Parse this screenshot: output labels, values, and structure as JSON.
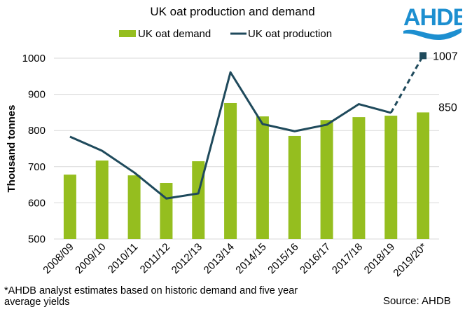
{
  "logo": {
    "text": "AHDB",
    "color": "#1d8fd0"
  },
  "footnote": "*AHDB analyst estimates based on historic demand and five year average yields",
  "source": "Source: AHDB",
  "colors": {
    "demand": "#95be1f",
    "production": "#1f4a5c",
    "grid": "#d9d9d9"
  },
  "chart_data": {
    "type": "bar",
    "title": "UK oat production and demand",
    "xlabel": "",
    "ylabel": "Thousand tonnes",
    "ylim": [
      500,
      1000
    ],
    "yticks": [
      500,
      600,
      700,
      800,
      900,
      1000
    ],
    "grid": true,
    "legend_position": "top-center",
    "categories": [
      "2008/09",
      "2009/10",
      "2010/11",
      "2011/12",
      "2012/13",
      "2013/14",
      "2014/15",
      "2015/16",
      "2016/17",
      "2017/18",
      "2018/19",
      "2019/20*"
    ],
    "series": [
      {
        "name": "UK oat demand",
        "type": "bar",
        "values": [
          678,
          717,
          676,
          655,
          715,
          876,
          839,
          785,
          829,
          837,
          841,
          850
        ]
      },
      {
        "name": "UK oat production",
        "type": "line",
        "values": [
          783,
          744,
          684,
          612,
          626,
          961,
          818,
          798,
          816,
          873,
          849,
          1007
        ],
        "dashed_from_index": 10
      }
    ],
    "annotations": [
      {
        "text": "1007",
        "series": "UK oat production",
        "category": "2019/20*"
      },
      {
        "text": "850",
        "series": "UK oat demand",
        "category": "2019/20*"
      }
    ]
  }
}
